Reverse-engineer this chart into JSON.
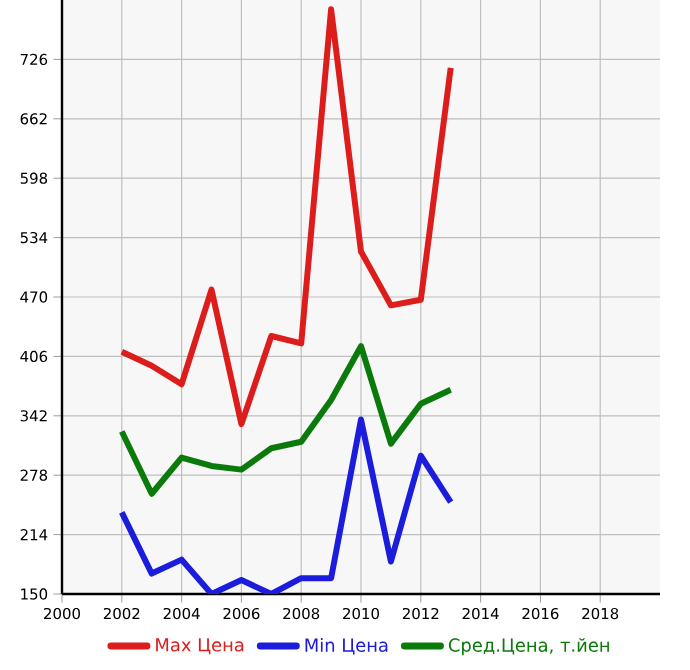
{
  "chart_data": {
    "type": "line",
    "x": [
      2002,
      2003,
      2004,
      2005,
      2006,
      2007,
      2008,
      2009,
      2010,
      2011,
      2012,
      2013
    ],
    "series": [
      {
        "name": "Max Цена",
        "color": "#dd1c1c",
        "values": [
          411,
          396,
          376,
          478,
          333,
          428,
          420,
          780,
          519,
          461,
          467,
          717
        ]
      },
      {
        "name": "Min Цена",
        "color": "#1c1cdd",
        "values": [
          238,
          172,
          187,
          150,
          165,
          150,
          167,
          167,
          338,
          185,
          299,
          249
        ]
      },
      {
        "name": "Сред.Цена, т.йен",
        "color": "#0a7a0a",
        "values": [
          325,
          258,
          297,
          288,
          284,
          307,
          314,
          359,
          417,
          312,
          355,
          370
        ]
      }
    ],
    "xlim": [
      2000,
      2020
    ],
    "ylim": [
      150,
      790
    ],
    "xticks": [
      2000,
      2002,
      2004,
      2006,
      2008,
      2010,
      2012,
      2014,
      2016,
      2018
    ],
    "yticks": [
      150,
      214,
      278,
      342,
      406,
      470,
      534,
      598,
      662,
      726
    ],
    "grid": true,
    "legend": "bottom",
    "marker": "none",
    "line_style": "solid"
  }
}
